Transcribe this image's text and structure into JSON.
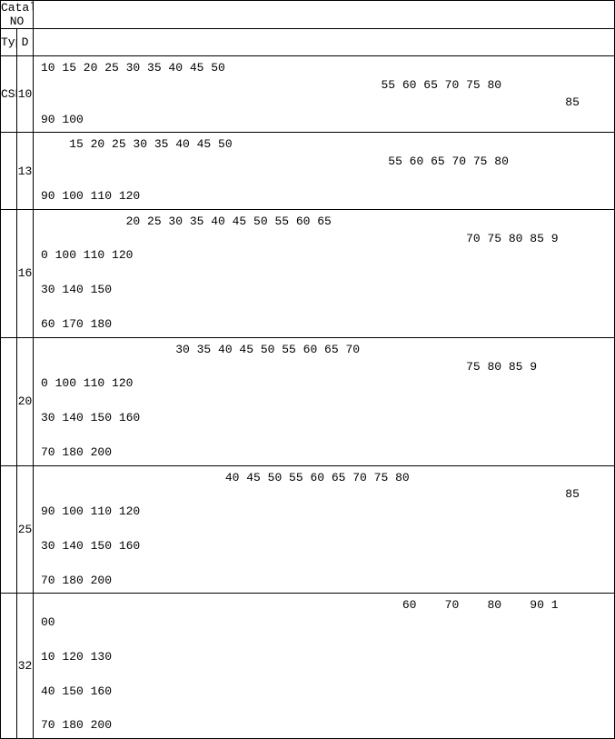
{
  "header": {
    "catalog_no": "Catalong NO",
    "type": "Type",
    "d": "D"
  },
  "type_label": "CSR",
  "rows": [
    {
      "d": "10",
      "lines": [
        "10 15 20 25 30 35 40 45 50",
        "                                                55 60 65 70 75 80",
        "                                                                          85",
        "90 100"
      ]
    },
    {
      "d": "13",
      "lines": [
        "    15 20 25 30 35 40 45 50",
        "                                                 55 60 65 70 75 80",
        "",
        "90 100 110 120"
      ]
    },
    {
      "d": "16",
      "lines": [
        "            20 25 30 35 40 45 50 55 60 65",
        "                                                            70 75 80 85 9",
        "0 100 110 120",
        "",
        "30 140 150",
        "",
        "60 170 180"
      ]
    },
    {
      "d": "20",
      "lines": [
        "                   30 35 40 45 50 55 60 65 70",
        "                                                            75 80 85 9",
        "0 100 110 120",
        "",
        "30 140 150 160",
        "",
        "70 180 200"
      ]
    },
    {
      "d": "25",
      "lines": [
        "                          40 45 50 55 60 65 70 75 80",
        "                                                                          85",
        "90 100 110 120",
        "",
        "30 140 150 160",
        "",
        "70 180 200"
      ]
    },
    {
      "d": "32",
      "lines": [
        "                                                   60    70    80    90 1",
        "00",
        "",
        "10 120 130",
        "",
        "40 150 160",
        "",
        "70 180 200"
      ]
    }
  ]
}
